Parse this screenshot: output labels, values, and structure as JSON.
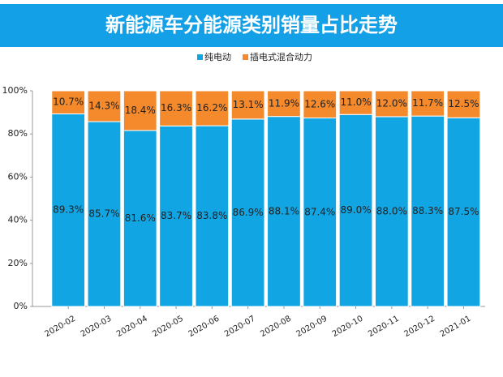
{
  "chart_data": {
    "type": "stacked_bar",
    "title": "新能源车分能源类别销量占比走势",
    "categories": [
      "2020-02",
      "2020-03",
      "2020-04",
      "2020-05",
      "2020-06",
      "2020-07",
      "2020-08",
      "2020-09",
      "2020-10",
      "2020-11",
      "2020-12",
      "2021-01"
    ],
    "series": [
      {
        "name": "纯电动",
        "color": "#12a5e3",
        "values": [
          89.3,
          85.7,
          81.6,
          83.7,
          83.8,
          86.9,
          88.1,
          87.4,
          89.0,
          88.0,
          88.3,
          87.5
        ],
        "value_labels": [
          "89.3%",
          "85.7%",
          "81.6%",
          "83.7%",
          "83.8%",
          "86.9%",
          "88.1%",
          "87.4%",
          "89.0%",
          "88.0%",
          "88.3%",
          "87.5%"
        ]
      },
      {
        "name": "插电式混合动力",
        "color": "#f58a2c",
        "values": [
          10.7,
          14.3,
          18.4,
          16.3,
          16.2,
          13.1,
          11.9,
          12.6,
          11.0,
          12.0,
          11.7,
          12.5
        ],
        "value_labels": [
          "10.7%",
          "14.3%",
          "18.4%",
          "16.3%",
          "16.2%",
          "13.1%",
          "11.9%",
          "12.6%",
          "11.0%",
          "12.0%",
          "11.7%",
          "12.5%"
        ]
      }
    ],
    "ylim": [
      0,
      100
    ],
    "yticks": [
      {
        "value": 0,
        "label": "0%"
      },
      {
        "value": 20,
        "label": "20%"
      },
      {
        "value": 40,
        "label": "40%"
      },
      {
        "value": 60,
        "label": "60%"
      },
      {
        "value": 80,
        "label": "80%"
      },
      {
        "value": 100,
        "label": "100%"
      }
    ],
    "legend": "top"
  }
}
